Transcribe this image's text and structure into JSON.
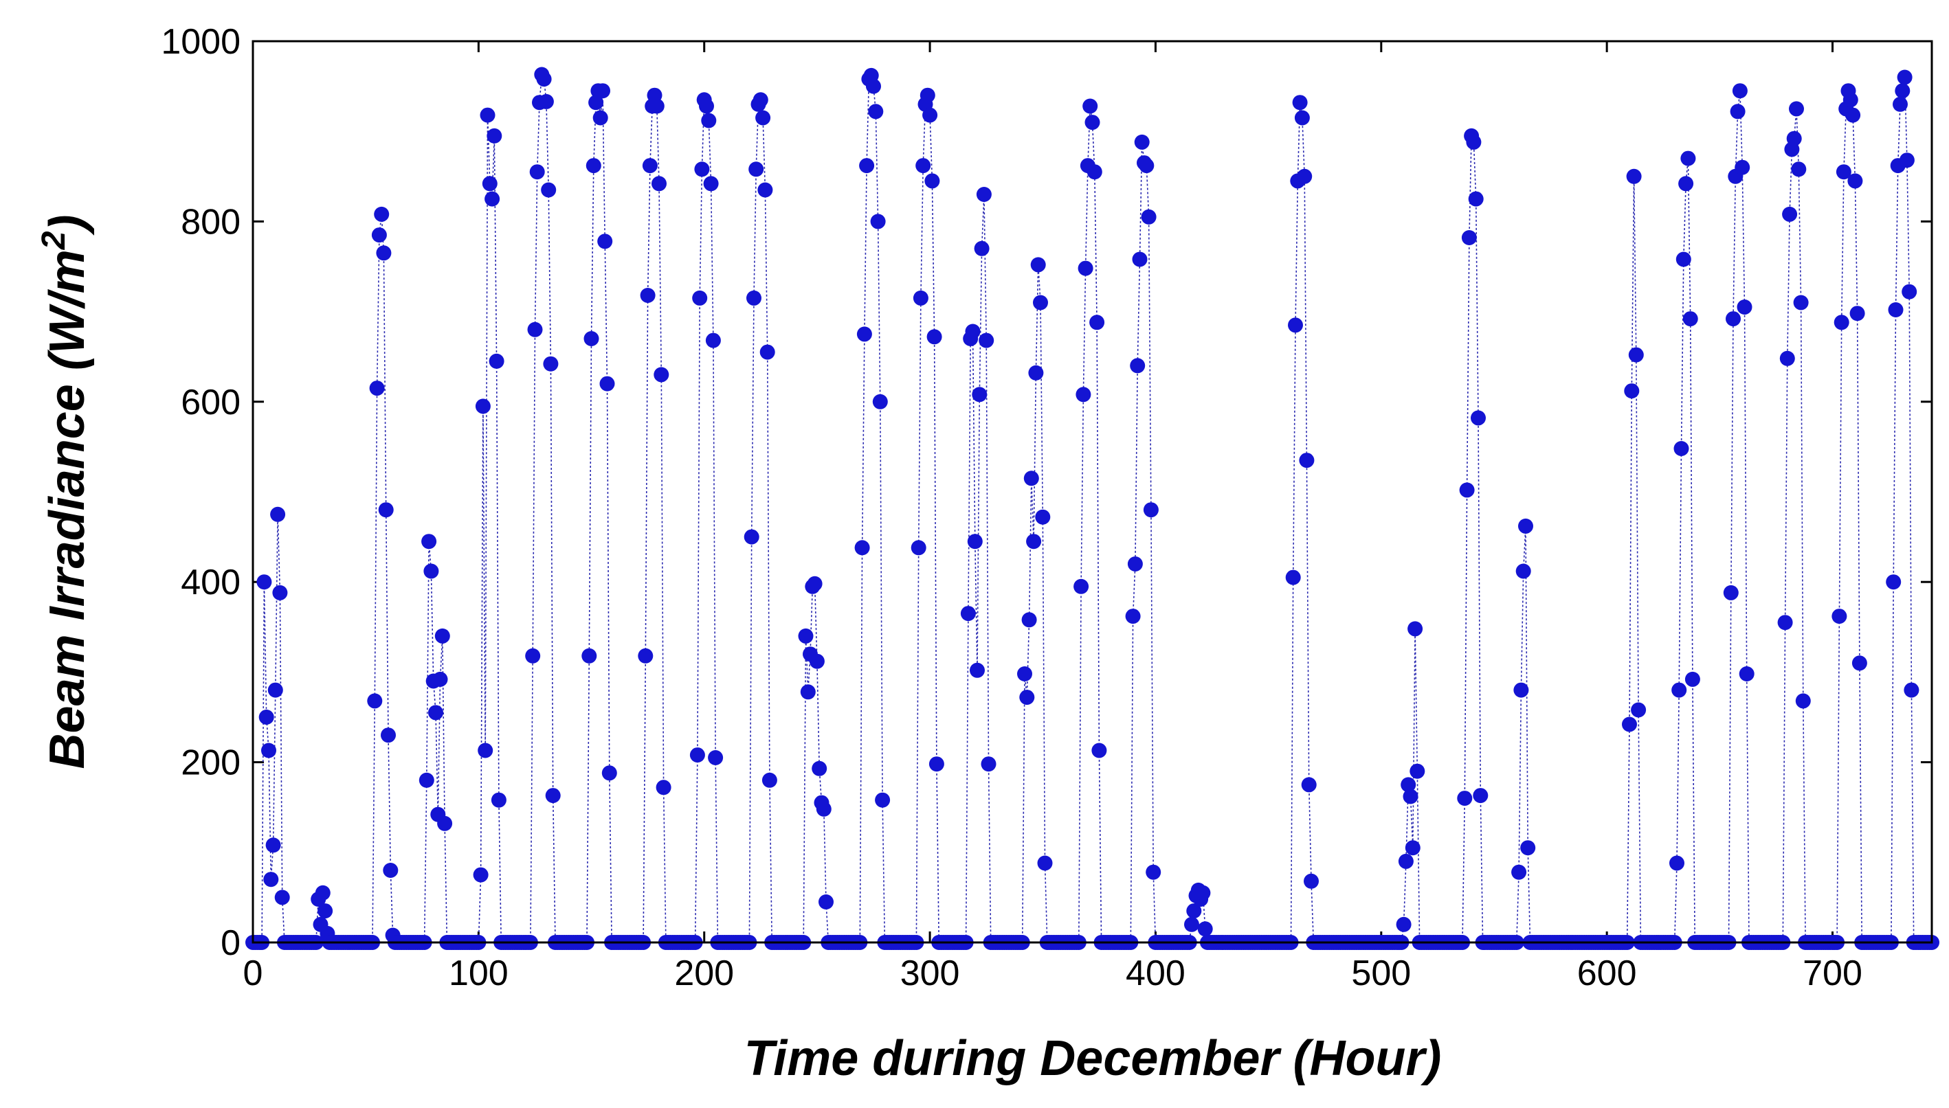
{
  "chart_data": {
    "type": "scatter",
    "title": "",
    "xlabel": "Time during December (Hour)",
    "ylabel": "Beam Irradiance (W/m",
    "ylabel_superscript": "2",
    "ylabel_suffix": ")",
    "xlim": [
      0,
      744
    ],
    "ylim": [
      0,
      1000
    ],
    "xticks": [
      0,
      100,
      200,
      300,
      400,
      500,
      600,
      700
    ],
    "yticks": [
      0,
      200,
      400,
      600,
      800,
      1000
    ],
    "grid": false,
    "legend": "none",
    "marker_color": "#1414d2",
    "line_color": "#2a2ab0",
    "series": [
      {
        "days": [
          {
            "start": 5,
            "values": [
              400,
              250,
              213,
              70,
              108,
              280,
              475,
              388,
              50
            ]
          },
          {
            "start": 29,
            "values": [
              48,
              20,
              55,
              35,
              10
            ]
          },
          {
            "start": 54,
            "values": [
              268,
              615,
              785,
              808,
              765,
              480,
              230,
              80,
              8
            ]
          },
          {
            "start": 77,
            "values": [
              180,
              445,
              412,
              290,
              255,
              142,
              292,
              340,
              132
            ]
          },
          {
            "start": 101,
            "values": [
              75,
              595,
              213,
              918,
              842,
              825,
              895,
              645,
              158
            ]
          },
          {
            "start": 124,
            "values": [
              318,
              680,
              855,
              932,
              963,
              958,
              933,
              835,
              642,
              163
            ]
          },
          {
            "start": 149,
            "values": [
              318,
              670,
              862,
              932,
              945,
              915,
              945,
              778,
              620,
              188
            ]
          },
          {
            "start": 174,
            "values": [
              318,
              718,
              862,
              928,
              940,
              928,
              842,
              630,
              172
            ]
          },
          {
            "start": 197,
            "values": [
              208,
              715,
              858,
              935,
              928,
              912,
              842,
              668,
              205
            ]
          },
          {
            "start": 221,
            "values": [
              450,
              715,
              858,
              930,
              935,
              915,
              835,
              655,
              180
            ]
          },
          {
            "start": 245,
            "values": [
              340,
              278,
              320,
              395,
              398,
              312,
              193,
              155,
              148,
              45
            ]
          },
          {
            "start": 270,
            "values": [
              438,
              675,
              862,
              958,
              962,
              950,
              922,
              800,
              600,
              158
            ]
          },
          {
            "start": 295,
            "values": [
              438,
              715,
              862,
              930,
              940,
              918,
              845,
              672,
              198
            ]
          },
          {
            "start": 317,
            "values": [
              365,
              670,
              678,
              445,
              302,
              608,
              770,
              830,
              668,
              198
            ]
          },
          {
            "start": 342,
            "values": [
              298,
              272,
              358,
              515,
              445,
              632,
              752,
              710,
              472,
              88
            ]
          },
          {
            "start": 367,
            "values": [
              395,
              608,
              748,
              862,
              928,
              910,
              855,
              688,
              213
            ]
          },
          {
            "start": 390,
            "values": [
              362,
              420,
              640,
              758,
              888,
              865,
              862,
              805,
              480,
              78
            ]
          },
          {
            "start": 416,
            "values": [
              20,
              35,
              52,
              58,
              48,
              55,
              15
            ]
          },
          {
            "start": 461,
            "values": [
              405,
              685,
              845,
              932,
              915,
              850,
              535,
              175,
              68
            ]
          },
          {
            "start": 510,
            "values": [
              20,
              90,
              175,
              162,
              105,
              348,
              190
            ]
          },
          {
            "start": 537,
            "values": [
              160,
              502,
              782,
              895,
              888,
              825,
              582,
              163
            ]
          },
          {
            "start": 561,
            "values": [
              78,
              280,
              412,
              462,
              105
            ]
          },
          {
            "start": 610,
            "values": [
              242,
              612,
              850,
              652,
              258
            ]
          },
          {
            "start": 631,
            "values": [
              88,
              280,
              548,
              758,
              842,
              870,
              692,
              292
            ]
          },
          {
            "start": 655,
            "values": [
              388,
              692,
              850,
              922,
              945,
              860,
              705,
              298
            ]
          },
          {
            "start": 679,
            "values": [
              355,
              648,
              808,
              880,
              892,
              925,
              858,
              710,
              268
            ]
          },
          {
            "start": 703,
            "values": [
              362,
              688,
              855,
              925,
              945,
              935,
              918,
              845,
              698,
              310
            ]
          },
          {
            "start": 727,
            "values": [
              400,
              702,
              862,
              930,
              945,
              960,
              868,
              722,
              280
            ]
          }
        ]
      }
    ]
  }
}
